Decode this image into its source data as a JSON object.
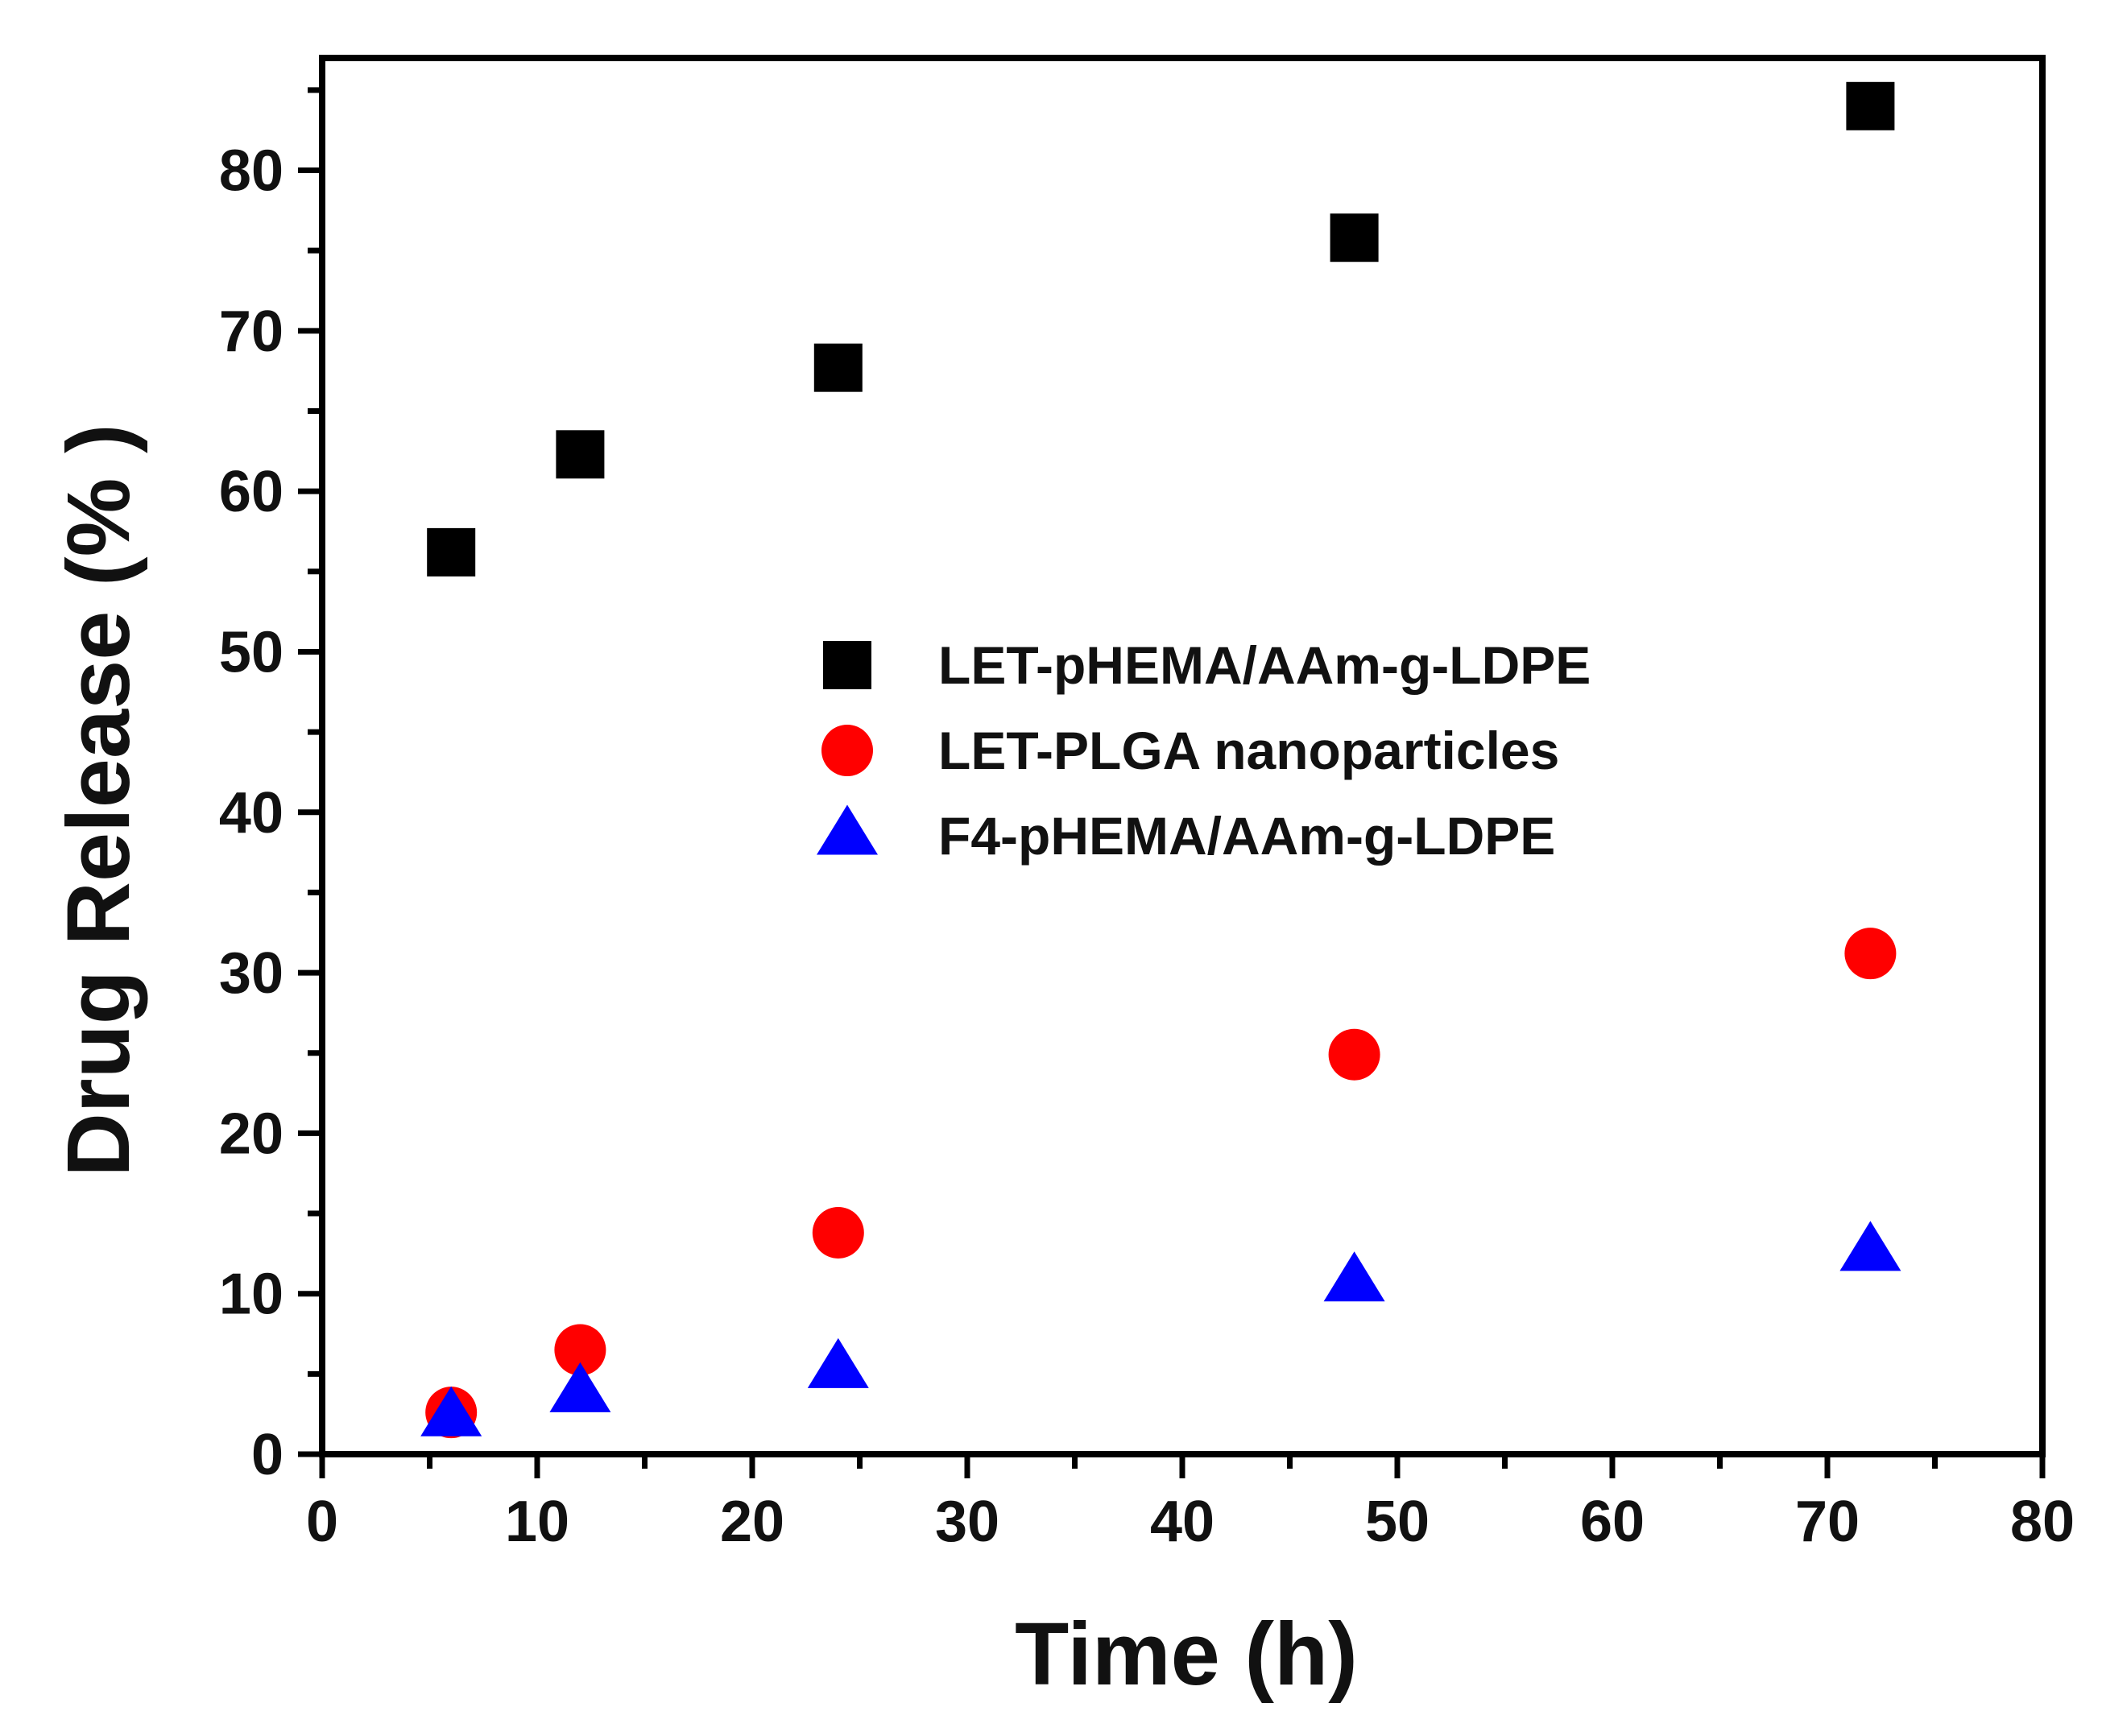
{
  "chart_data": {
    "type": "scatter",
    "xlabel": "Time (h)",
    "ylabel": "Drug Release (% )",
    "xlim": [
      0,
      80
    ],
    "ylim": [
      0,
      87
    ],
    "xticks": [
      0,
      10,
      20,
      30,
      40,
      50,
      60,
      70,
      80
    ],
    "yticks": [
      0,
      10,
      20,
      30,
      40,
      50,
      60,
      70,
      80
    ],
    "grid": false,
    "legend_position": "center-right",
    "series": [
      {
        "name": "LET-pHEMA/AAm-g-LDPE",
        "marker": "square",
        "color": "#000000",
        "x": [
          6,
          12,
          24,
          48,
          72
        ],
        "y": [
          56.2,
          62.3,
          67.7,
          75.8,
          84.0
        ]
      },
      {
        "name": "LET-PLGA nanoparticles",
        "marker": "circle",
        "color": "#ff0000",
        "x": [
          6,
          12,
          24,
          48,
          72
        ],
        "y": [
          2.6,
          6.5,
          13.8,
          24.9,
          31.2
        ]
      },
      {
        "name": "F4-pHEMA/AAm-g-LDPE",
        "marker": "triangle",
        "color": "#0000ff",
        "x": [
          6,
          12,
          24,
          48,
          72
        ],
        "y": [
          2.3,
          3.8,
          5.3,
          10.7,
          12.6
        ]
      }
    ]
  }
}
